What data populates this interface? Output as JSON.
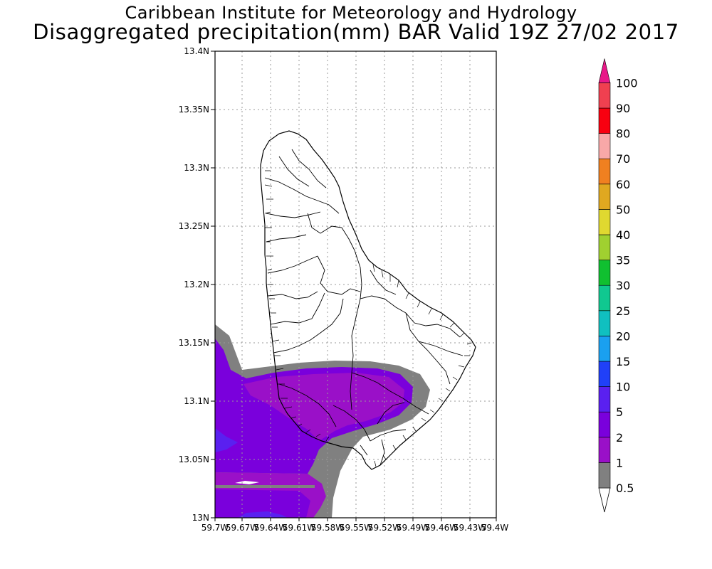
{
  "title_line1": "Caribbean Institute for Meteorology and Hydrology",
  "title_line2": "Disaggregated precipitation(mm) BAR Valid 19Z 27/02 2017",
  "map": {
    "lat_range": [
      13.0,
      13.4
    ],
    "lon_range_west": [
      59.7,
      59.4
    ],
    "y_ticks": [
      "13N",
      "13.05N",
      "13.1N",
      "13.15N",
      "13.2N",
      "13.25N",
      "13.3N",
      "13.35N",
      "13.4N"
    ],
    "x_ticks": [
      "59.7W",
      "59.67W",
      "59.64W",
      "59.61W",
      "59.58W",
      "59.55W",
      "59.52W",
      "59.49W",
      "59.46W",
      "59.43W",
      "59.4W"
    ],
    "grid": true
  },
  "colorbar": {
    "levels": [
      {
        "label": "0.5",
        "color": "#ffffff"
      },
      {
        "label": "1",
        "color": "#808080"
      },
      {
        "label": "2",
        "color": "#9a10c8"
      },
      {
        "label": "5",
        "color": "#7a00dc"
      },
      {
        "label": "10",
        "color": "#5a20f0"
      },
      {
        "label": "15",
        "color": "#2040f8"
      },
      {
        "label": "20",
        "color": "#1aa0f0"
      },
      {
        "label": "25",
        "color": "#10c0c0"
      },
      {
        "label": "30",
        "color": "#10c890"
      },
      {
        "label": "35",
        "color": "#10c030"
      },
      {
        "label": "40",
        "color": "#a0d030"
      },
      {
        "label": "50",
        "color": "#e0d830"
      },
      {
        "label": "60",
        "color": "#e0a820"
      },
      {
        "label": "70",
        "color": "#f08020"
      },
      {
        "label": "80",
        "color": "#f8a8a8"
      },
      {
        "label": "90",
        "color": "#f80010"
      },
      {
        "label": "100",
        "color": "#f04050"
      }
    ],
    "top_color": "#e81888"
  }
}
